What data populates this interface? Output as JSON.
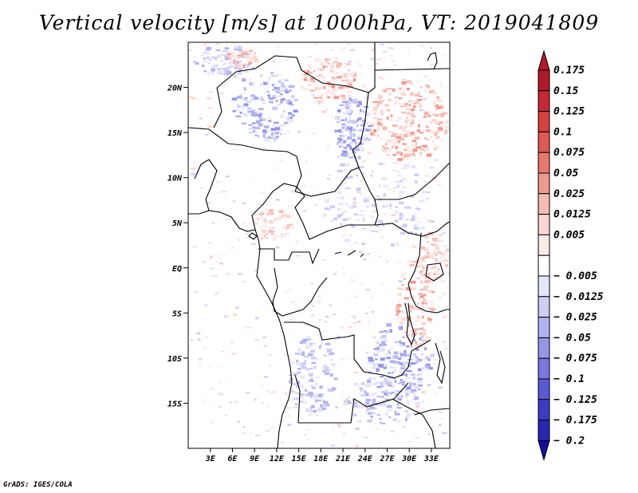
{
  "title": "Vertical velocity [m/s] at 1000hPa, VT: 2019041809",
  "footer": "GrADS: IGES/COLA",
  "lat_ticks": [
    {
      "lat": 20,
      "label": "20N"
    },
    {
      "lat": 15,
      "label": "15N"
    },
    {
      "lat": 10,
      "label": "10N"
    },
    {
      "lat": 5,
      "label": "5N"
    },
    {
      "lat": 0,
      "label": "EQ"
    },
    {
      "lat": -5,
      "label": "5S"
    },
    {
      "lat": -10,
      "label": "10S"
    },
    {
      "lat": -15,
      "label": "15S"
    }
  ],
  "lon_ticks": [
    {
      "lon": 3,
      "label": "3E"
    },
    {
      "lon": 6,
      "label": "6E"
    },
    {
      "lon": 9,
      "label": "9E"
    },
    {
      "lon": 12,
      "label": "12E"
    },
    {
      "lon": 15,
      "label": "15E"
    },
    {
      "lon": 18,
      "label": "18E"
    },
    {
      "lon": 21,
      "label": "21E"
    },
    {
      "lon": 24,
      "label": "24E"
    },
    {
      "lon": 27,
      "label": "27E"
    },
    {
      "lon": 30,
      "label": "30E"
    },
    {
      "lon": 33,
      "label": "33E"
    }
  ],
  "colorbar": {
    "top_color": "#b2182b",
    "bottom_color": "#1a0aa0",
    "bins": [
      {
        "label": "0.175",
        "color": "#b2182b"
      },
      {
        "label": "0.15",
        "color": "#c42a34"
      },
      {
        "label": "0.125",
        "color": "#d6403f"
      },
      {
        "label": "0.1",
        "color": "#e05a55"
      },
      {
        "label": "0.075",
        "color": "#e8786f"
      },
      {
        "label": "0.05",
        "color": "#ef9a90"
      },
      {
        "label": "0.025",
        "color": "#f5bcb4"
      },
      {
        "label": "0.0125",
        "color": "#f9d6d0"
      },
      {
        "label": "0.005",
        "color": "#fcebe8"
      },
      {
        "label": "",
        "color": "#ffffff"
      },
      {
        "label": "− 0.005",
        "color": "#e6e6fa"
      },
      {
        "label": "− 0.0125",
        "color": "#cdcdf5"
      },
      {
        "label": "− 0.025",
        "color": "#b2b2f0"
      },
      {
        "label": "− 0.05",
        "color": "#9696e8"
      },
      {
        "label": "− 0.075",
        "color": "#7878de"
      },
      {
        "label": "− 0.1",
        "color": "#5a5ad2"
      },
      {
        "label": "− 0.125",
        "color": "#3c3cc4"
      },
      {
        "label": "− 0.175",
        "color": "#2828b4"
      },
      {
        "label": "− 0.2",
        "color": ""
      }
    ]
  }
}
